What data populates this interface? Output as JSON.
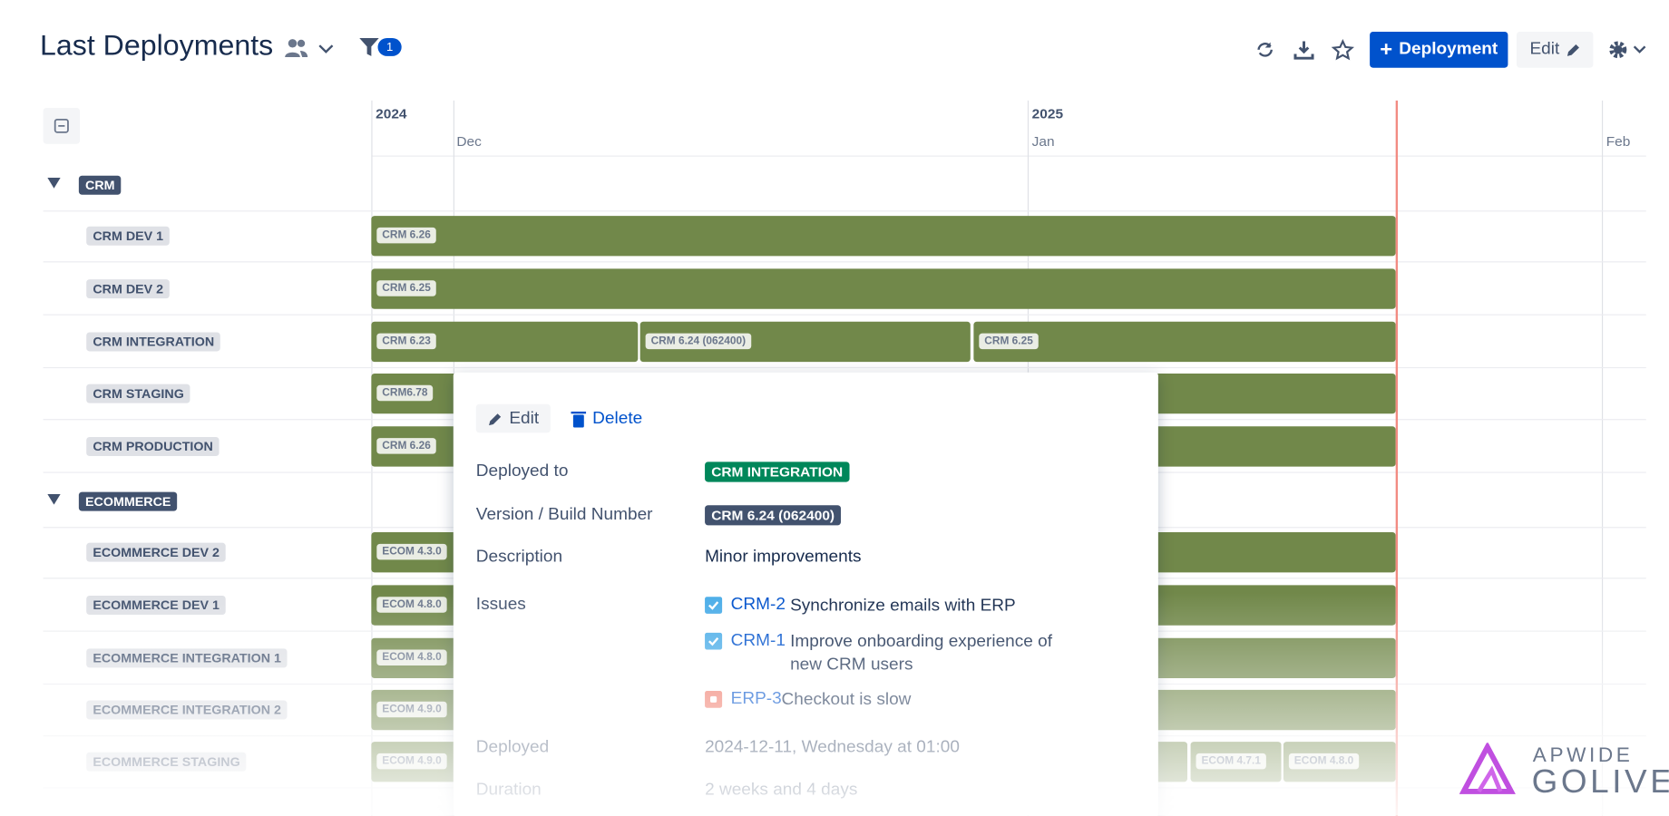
{
  "header": {
    "title": "Last Deployments",
    "filter_count": 1,
    "add_button": "Deployment",
    "edit_button": "Edit"
  },
  "timeline": {
    "years": [
      "2024",
      "2025"
    ],
    "months": [
      "Dec",
      "Jan",
      "Feb"
    ]
  },
  "groups": [
    {
      "name": "CRM",
      "rows": [
        {
          "name": "CRM DEV 1",
          "bars": [
            "CRM 6.26"
          ]
        },
        {
          "name": "CRM DEV 2",
          "bars": [
            "CRM 6.25"
          ]
        },
        {
          "name": "CRM INTEGRATION",
          "bars": [
            "CRM 6.23",
            "CRM 6.24 (062400)",
            "CRM 6.25"
          ]
        },
        {
          "name": "CRM STAGING",
          "bars": [
            "CRM6.78"
          ]
        },
        {
          "name": "CRM PRODUCTION",
          "bars": [
            "CRM 6.26"
          ]
        }
      ]
    },
    {
      "name": "ECOMMERCE",
      "rows": [
        {
          "name": "ECOMMERCE DEV 2",
          "bars": [
            "ECOM 4.3.0"
          ]
        },
        {
          "name": "ECOMMERCE DEV 1",
          "bars": [
            "ECOM 4.8.0"
          ]
        },
        {
          "name": "ECOMMERCE INTEGRATION 1",
          "bars": [
            "ECOM 4.8.0"
          ]
        },
        {
          "name": "ECOMMERCE INTEGRATION 2",
          "bars": [
            "ECOM 4.9.0"
          ]
        },
        {
          "name": "ECOMMERCE STAGING",
          "bars": [
            "ECOM 4.9.0",
            "ECOM 4.7.1",
            "ECOM 4.8.0"
          ]
        }
      ]
    }
  ],
  "popup": {
    "actions": [
      "Edit",
      "Delete"
    ],
    "fields": [
      {
        "label": "Deployed to",
        "value": "CRM INTEGRATION"
      },
      {
        "label": "Version / Build Number",
        "value": "CRM 6.24 (062400)"
      },
      {
        "label": "Description",
        "value": "Minor improvements"
      }
    ],
    "issues_label": "Issues",
    "issues": [
      {
        "key": "CRM-2",
        "summary": "Synchronize emails with ERP"
      },
      {
        "key": "CRM-1",
        "summary": "Improve onboarding experience of new CRM users"
      },
      {
        "key": "ERP-3",
        "summary": "Checkout is slow"
      }
    ],
    "more_fields": [
      {
        "label": "Deployed",
        "value": "2024-12-11, Wednesday at 01:00"
      },
      {
        "label": "Duration",
        "value": "2 weeks and 4 days"
      }
    ]
  },
  "logo": {
    "top": "APWIDE",
    "bottom": "GOLIVE"
  }
}
